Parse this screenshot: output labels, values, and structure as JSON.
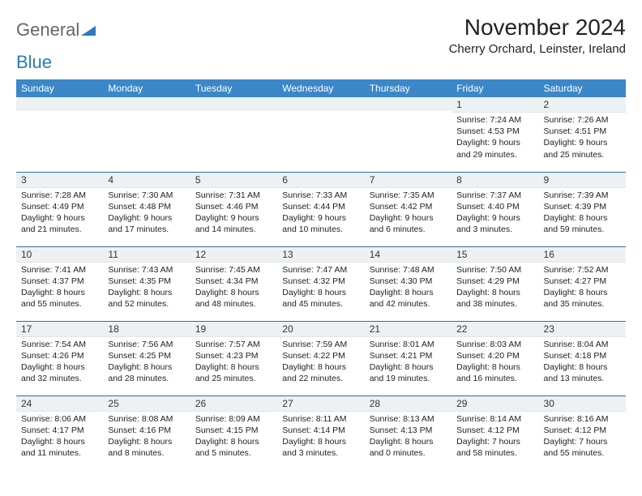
{
  "logo": {
    "text1": "General",
    "text2": "Blue",
    "tri_color": "#2a7abf"
  },
  "header": {
    "title": "November 2024",
    "subtitle": "Cherry Orchard, Leinster, Ireland"
  },
  "calendar": {
    "header_bg": "#3b87c8",
    "header_fg": "#ffffff",
    "daynum_bg": "#eef1f3",
    "row_border": "#2f6ea6",
    "background": "#ffffff",
    "day_labels": [
      "Sunday",
      "Monday",
      "Tuesday",
      "Wednesday",
      "Thursday",
      "Friday",
      "Saturday"
    ],
    "weeks": [
      [
        {
          "n": "",
          "sunrise": "",
          "sunset": "",
          "daylight": ""
        },
        {
          "n": "",
          "sunrise": "",
          "sunset": "",
          "daylight": ""
        },
        {
          "n": "",
          "sunrise": "",
          "sunset": "",
          "daylight": ""
        },
        {
          "n": "",
          "sunrise": "",
          "sunset": "",
          "daylight": ""
        },
        {
          "n": "",
          "sunrise": "",
          "sunset": "",
          "daylight": ""
        },
        {
          "n": "1",
          "sunrise": "Sunrise: 7:24 AM",
          "sunset": "Sunset: 4:53 PM",
          "daylight": "Daylight: 9 hours and 29 minutes."
        },
        {
          "n": "2",
          "sunrise": "Sunrise: 7:26 AM",
          "sunset": "Sunset: 4:51 PM",
          "daylight": "Daylight: 9 hours and 25 minutes."
        }
      ],
      [
        {
          "n": "3",
          "sunrise": "Sunrise: 7:28 AM",
          "sunset": "Sunset: 4:49 PM",
          "daylight": "Daylight: 9 hours and 21 minutes."
        },
        {
          "n": "4",
          "sunrise": "Sunrise: 7:30 AM",
          "sunset": "Sunset: 4:48 PM",
          "daylight": "Daylight: 9 hours and 17 minutes."
        },
        {
          "n": "5",
          "sunrise": "Sunrise: 7:31 AM",
          "sunset": "Sunset: 4:46 PM",
          "daylight": "Daylight: 9 hours and 14 minutes."
        },
        {
          "n": "6",
          "sunrise": "Sunrise: 7:33 AM",
          "sunset": "Sunset: 4:44 PM",
          "daylight": "Daylight: 9 hours and 10 minutes."
        },
        {
          "n": "7",
          "sunrise": "Sunrise: 7:35 AM",
          "sunset": "Sunset: 4:42 PM",
          "daylight": "Daylight: 9 hours and 6 minutes."
        },
        {
          "n": "8",
          "sunrise": "Sunrise: 7:37 AM",
          "sunset": "Sunset: 4:40 PM",
          "daylight": "Daylight: 9 hours and 3 minutes."
        },
        {
          "n": "9",
          "sunrise": "Sunrise: 7:39 AM",
          "sunset": "Sunset: 4:39 PM",
          "daylight": "Daylight: 8 hours and 59 minutes."
        }
      ],
      [
        {
          "n": "10",
          "sunrise": "Sunrise: 7:41 AM",
          "sunset": "Sunset: 4:37 PM",
          "daylight": "Daylight: 8 hours and 55 minutes."
        },
        {
          "n": "11",
          "sunrise": "Sunrise: 7:43 AM",
          "sunset": "Sunset: 4:35 PM",
          "daylight": "Daylight: 8 hours and 52 minutes."
        },
        {
          "n": "12",
          "sunrise": "Sunrise: 7:45 AM",
          "sunset": "Sunset: 4:34 PM",
          "daylight": "Daylight: 8 hours and 48 minutes."
        },
        {
          "n": "13",
          "sunrise": "Sunrise: 7:47 AM",
          "sunset": "Sunset: 4:32 PM",
          "daylight": "Daylight: 8 hours and 45 minutes."
        },
        {
          "n": "14",
          "sunrise": "Sunrise: 7:48 AM",
          "sunset": "Sunset: 4:30 PM",
          "daylight": "Daylight: 8 hours and 42 minutes."
        },
        {
          "n": "15",
          "sunrise": "Sunrise: 7:50 AM",
          "sunset": "Sunset: 4:29 PM",
          "daylight": "Daylight: 8 hours and 38 minutes."
        },
        {
          "n": "16",
          "sunrise": "Sunrise: 7:52 AM",
          "sunset": "Sunset: 4:27 PM",
          "daylight": "Daylight: 8 hours and 35 minutes."
        }
      ],
      [
        {
          "n": "17",
          "sunrise": "Sunrise: 7:54 AM",
          "sunset": "Sunset: 4:26 PM",
          "daylight": "Daylight: 8 hours and 32 minutes."
        },
        {
          "n": "18",
          "sunrise": "Sunrise: 7:56 AM",
          "sunset": "Sunset: 4:25 PM",
          "daylight": "Daylight: 8 hours and 28 minutes."
        },
        {
          "n": "19",
          "sunrise": "Sunrise: 7:57 AM",
          "sunset": "Sunset: 4:23 PM",
          "daylight": "Daylight: 8 hours and 25 minutes."
        },
        {
          "n": "20",
          "sunrise": "Sunrise: 7:59 AM",
          "sunset": "Sunset: 4:22 PM",
          "daylight": "Daylight: 8 hours and 22 minutes."
        },
        {
          "n": "21",
          "sunrise": "Sunrise: 8:01 AM",
          "sunset": "Sunset: 4:21 PM",
          "daylight": "Daylight: 8 hours and 19 minutes."
        },
        {
          "n": "22",
          "sunrise": "Sunrise: 8:03 AM",
          "sunset": "Sunset: 4:20 PM",
          "daylight": "Daylight: 8 hours and 16 minutes."
        },
        {
          "n": "23",
          "sunrise": "Sunrise: 8:04 AM",
          "sunset": "Sunset: 4:18 PM",
          "daylight": "Daylight: 8 hours and 13 minutes."
        }
      ],
      [
        {
          "n": "24",
          "sunrise": "Sunrise: 8:06 AM",
          "sunset": "Sunset: 4:17 PM",
          "daylight": "Daylight: 8 hours and 11 minutes."
        },
        {
          "n": "25",
          "sunrise": "Sunrise: 8:08 AM",
          "sunset": "Sunset: 4:16 PM",
          "daylight": "Daylight: 8 hours and 8 minutes."
        },
        {
          "n": "26",
          "sunrise": "Sunrise: 8:09 AM",
          "sunset": "Sunset: 4:15 PM",
          "daylight": "Daylight: 8 hours and 5 minutes."
        },
        {
          "n": "27",
          "sunrise": "Sunrise: 8:11 AM",
          "sunset": "Sunset: 4:14 PM",
          "daylight": "Daylight: 8 hours and 3 minutes."
        },
        {
          "n": "28",
          "sunrise": "Sunrise: 8:13 AM",
          "sunset": "Sunset: 4:13 PM",
          "daylight": "Daylight: 8 hours and 0 minutes."
        },
        {
          "n": "29",
          "sunrise": "Sunrise: 8:14 AM",
          "sunset": "Sunset: 4:12 PM",
          "daylight": "Daylight: 7 hours and 58 minutes."
        },
        {
          "n": "30",
          "sunrise": "Sunrise: 8:16 AM",
          "sunset": "Sunset: 4:12 PM",
          "daylight": "Daylight: 7 hours and 55 minutes."
        }
      ]
    ]
  }
}
